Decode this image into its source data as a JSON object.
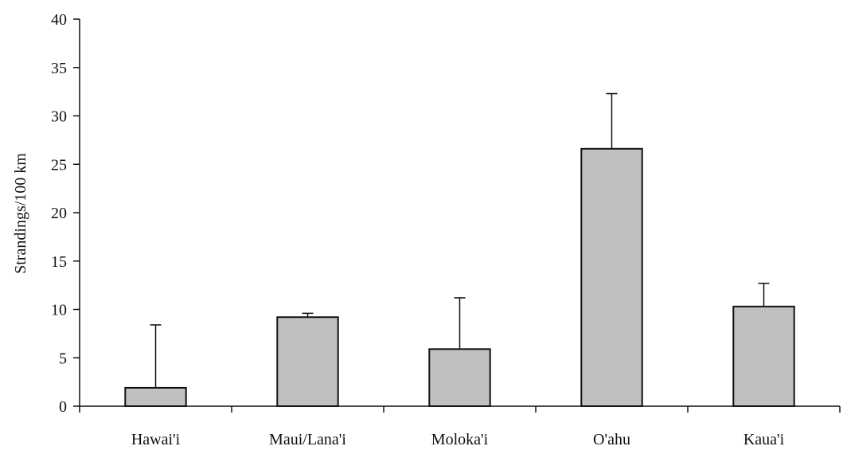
{
  "chart_data": {
    "type": "bar",
    "title": "",
    "xlabel": "",
    "ylabel": "Strandings/100 km",
    "categories": [
      "Hawai'i",
      "Maui/Lana'i",
      "Moloka'i",
      "O'ahu",
      "Kaua'i"
    ],
    "values": [
      1.9,
      9.2,
      5.9,
      26.6,
      10.3
    ],
    "error_upper": [
      8.4,
      9.6,
      11.2,
      32.3,
      12.7
    ],
    "ylim": [
      0,
      40
    ],
    "yticks": [
      0,
      5,
      10,
      15,
      20,
      25,
      30,
      35,
      40
    ],
    "grid": false,
    "legend": "none",
    "colors": {
      "bar_fill": "#c0c0c0",
      "bar_stroke": "#111111",
      "axis": "#111111"
    }
  }
}
